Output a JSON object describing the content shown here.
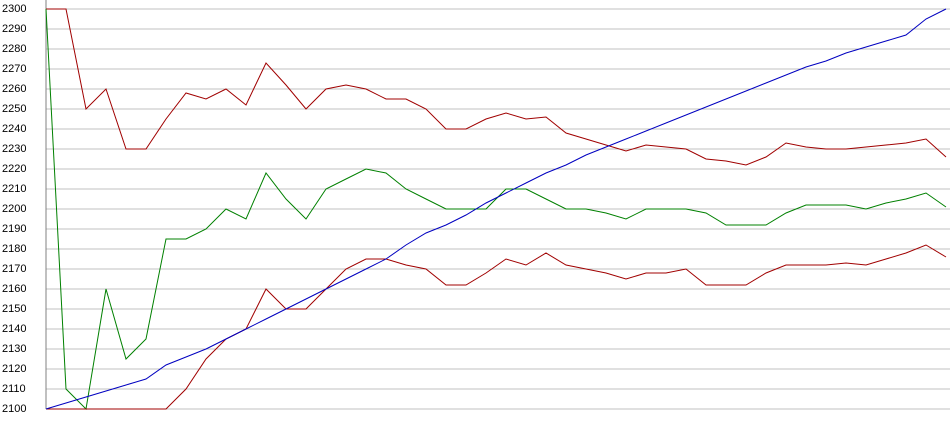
{
  "chart_data": {
    "type": "line",
    "ylim": [
      2100,
      2300
    ],
    "yticks": [
      2100,
      2110,
      2120,
      2130,
      2140,
      2150,
      2160,
      2170,
      2180,
      2190,
      2200,
      2210,
      2220,
      2230,
      2240,
      2250,
      2260,
      2270,
      2280,
      2290,
      2300
    ],
    "grid": true,
    "series": [
      {
        "color": "#a00000",
        "values": [
          2300,
          2300,
          2250,
          2260,
          2230,
          2230,
          2245,
          2258,
          2255,
          2260,
          2252,
          2273,
          2262,
          2250,
          2260,
          2262,
          2260,
          2255,
          2255,
          2250,
          2240,
          2240,
          2245,
          2248,
          2245,
          2246,
          2238,
          2235,
          2232,
          2229,
          2232,
          2231,
          2230,
          2225,
          2224,
          2222,
          2226,
          2233,
          2231,
          2230,
          2230,
          2231,
          2232,
          2233,
          2235,
          2226
        ]
      },
      {
        "color": "#008000",
        "values": [
          2300,
          2110,
          2100,
          2160,
          2125,
          2135,
          2185,
          2185,
          2190,
          2200,
          2195,
          2218,
          2205,
          2195,
          2210,
          2215,
          2220,
          2218,
          2210,
          2205,
          2200,
          2200,
          2200,
          2210,
          2210,
          2205,
          2200,
          2200,
          2198,
          2195,
          2200,
          2200,
          2200,
          2198,
          2192,
          2192,
          2192,
          2198,
          2202,
          2202,
          2202,
          2200,
          2203,
          2205,
          2208,
          2201
        ]
      },
      {
        "color": "#a00000",
        "values": [
          2100,
          2100,
          2100,
          2100,
          2100,
          2100,
          2100,
          2110,
          2125,
          2135,
          2140,
          2160,
          2150,
          2150,
          2160,
          2170,
          2175,
          2175,
          2172,
          2170,
          2162,
          2162,
          2168,
          2175,
          2172,
          2178,
          2172,
          2170,
          2168,
          2165,
          2168,
          2168,
          2170,
          2162,
          2162,
          2162,
          2168,
          2172,
          2172,
          2172,
          2173,
          2172,
          2175,
          2178,
          2182,
          2176
        ]
      },
      {
        "color": "#0000c0",
        "values": [
          2100,
          2103,
          2106,
          2109,
          2112,
          2115,
          2122,
          2126,
          2130,
          2135,
          2140,
          2145,
          2150,
          2155,
          2160,
          2165,
          2170,
          2175,
          2182,
          2188,
          2192,
          2197,
          2203,
          2208,
          2213,
          2218,
          2222,
          2227,
          2231,
          2235,
          2239,
          2243,
          2247,
          2251,
          2255,
          2259,
          2263,
          2267,
          2271,
          2274,
          2278,
          2281,
          2284,
          2287,
          2295,
          2300
        ]
      }
    ]
  }
}
